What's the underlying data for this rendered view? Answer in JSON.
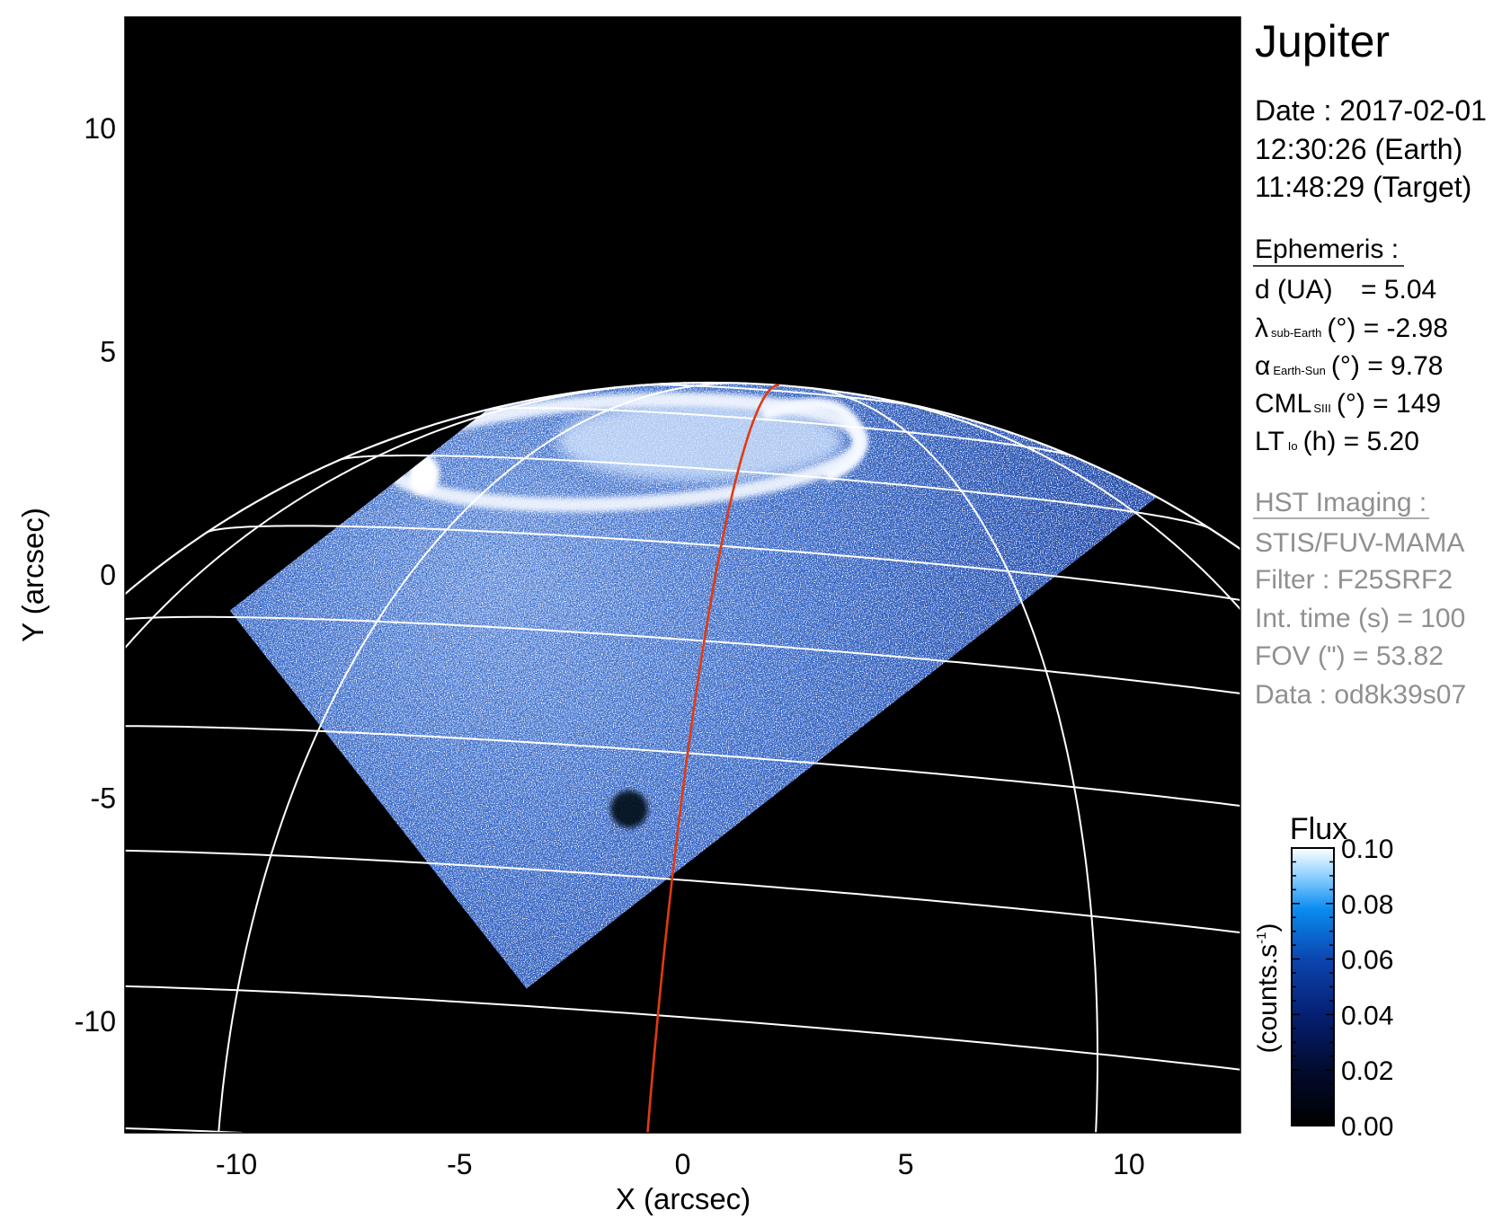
{
  "chart_data": {
    "type": "heatmap",
    "xlabel": "X (arcsec)",
    "ylabel": "Y (arcsec)",
    "xlim": [
      -12.5,
      12.5
    ],
    "ylim": [
      -12.5,
      12.5
    ],
    "xticks": [
      "-10",
      "-5",
      "0",
      "5",
      "10"
    ],
    "xtick_values": [
      -10,
      -5,
      0,
      5,
      10
    ],
    "yticks": [
      "10",
      "5",
      "0",
      "-5",
      "-10"
    ],
    "ytick_values": [
      10,
      5,
      0,
      -5,
      -10
    ],
    "grid": "planetographic lat/lon grid overlaid",
    "colorbar": {
      "title": "Flux",
      "label": "(counts.s",
      "label_sup": "-1",
      "label_close": ")",
      "range": [
        0.0,
        0.1
      ],
      "ticks": [
        "0.10",
        "0.08",
        "0.06",
        "0.04",
        "0.02",
        "0.00"
      ],
      "tick_values": [
        0.1,
        0.08,
        0.06,
        0.04,
        0.02,
        0.0
      ],
      "colormap": [
        "#000000",
        "#020b2e",
        "#061f73",
        "#0b46b0",
        "#0a8cf0",
        "#8fd0ff",
        "#ffffff"
      ]
    },
    "colors": {
      "grid": "#ffffff",
      "meridian_highlight": "#e03a10",
      "background": "#000000"
    }
  },
  "info": {
    "title": "Jupiter",
    "date": "Date : 2017-02-01",
    "time_earth": "12:30:26 (Earth)",
    "time_target": "11:48:29 (Target)",
    "ephemeris_heading": "Ephemeris :",
    "d": {
      "label": "d (UA)",
      "value": "= 5.04"
    },
    "lambda": {
      "symbol": "λ",
      "sub": "sub-Earth",
      "rest": "(°) = -2.98"
    },
    "alpha": {
      "symbol": "α",
      "sub": "Earth-Sun",
      "rest": "(°) = 9.78"
    },
    "cml": {
      "symbol": "CML",
      "sub": "SIII",
      "rest": "(°) = 149"
    },
    "lt": {
      "symbol": "LT",
      "sub": "Io",
      "rest": "(h) = 5.20"
    },
    "hst_heading": "HST Imaging :",
    "instrument": "STIS/FUV-MAMA",
    "filter": "Filter : F25SRF2",
    "int_time": "Int. time (s) = 100",
    "fov": "FOV (\") = 53.82",
    "dataset": "Data : od8k39s07"
  }
}
